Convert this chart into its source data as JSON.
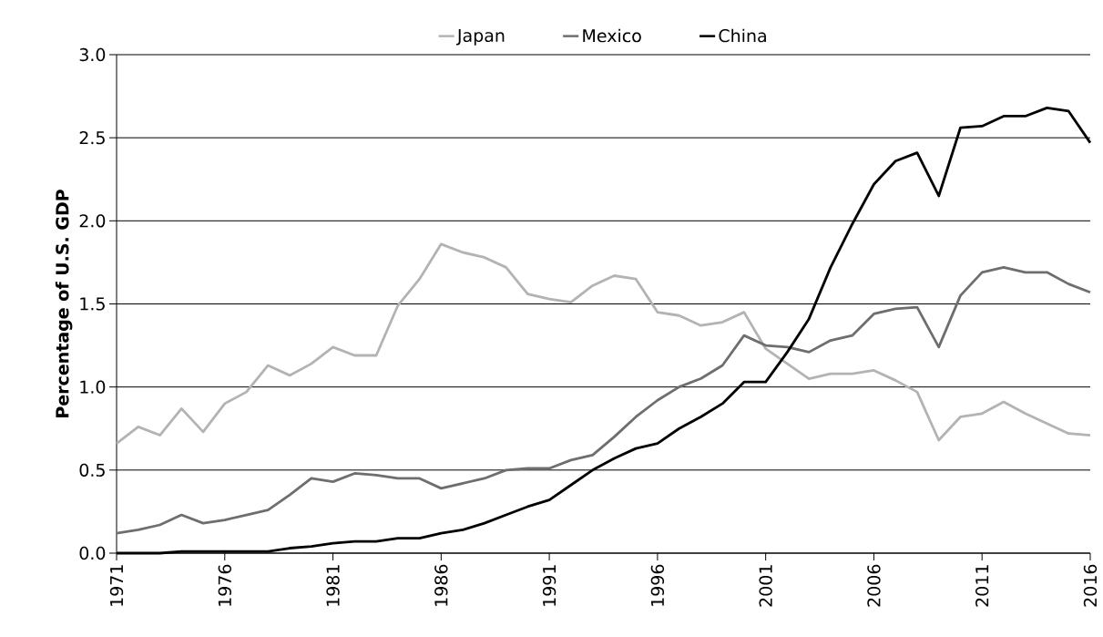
{
  "chart_data": {
    "type": "line",
    "ylabel": "Percentage of U.S. GDP",
    "x": [
      1971,
      1972,
      1973,
      1974,
      1975,
      1976,
      1977,
      1978,
      1979,
      1980,
      1981,
      1982,
      1983,
      1984,
      1985,
      1986,
      1987,
      1988,
      1989,
      1990,
      1991,
      1992,
      1993,
      1994,
      1995,
      1996,
      1997,
      1998,
      1999,
      2000,
      2001,
      2002,
      2003,
      2004,
      2005,
      2006,
      2007,
      2008,
      2009,
      2010,
      2011,
      2012,
      2013,
      2014,
      2015,
      2016
    ],
    "series": [
      {
        "name": "Japan",
        "color": "#b3b3b3",
        "values": [
          0.66,
          0.76,
          0.71,
          0.87,
          0.73,
          0.9,
          0.97,
          1.13,
          1.07,
          1.14,
          1.24,
          1.19,
          1.19,
          1.49,
          1.65,
          1.86,
          1.81,
          1.78,
          1.72,
          1.56,
          1.53,
          1.51,
          1.61,
          1.67,
          1.65,
          1.45,
          1.43,
          1.37,
          1.39,
          1.45,
          1.23,
          1.14,
          1.05,
          1.08,
          1.08,
          1.1,
          1.04,
          0.97,
          0.68,
          0.82,
          0.84,
          0.91,
          0.84,
          0.78,
          0.72,
          0.71
        ]
      },
      {
        "name": "Mexico",
        "color": "#6e6e6e",
        "values": [
          0.12,
          0.14,
          0.17,
          0.23,
          0.18,
          0.2,
          0.23,
          0.26,
          0.35,
          0.45,
          0.43,
          0.48,
          0.47,
          0.45,
          0.45,
          0.39,
          0.42,
          0.45,
          0.5,
          0.51,
          0.51,
          0.56,
          0.59,
          0.7,
          0.82,
          0.92,
          1.0,
          1.05,
          1.13,
          1.31,
          1.25,
          1.24,
          1.21,
          1.28,
          1.31,
          1.44,
          1.47,
          1.48,
          1.24,
          1.55,
          1.69,
          1.72,
          1.69,
          1.69,
          1.62,
          1.57
        ]
      },
      {
        "name": "China",
        "color": "#000000",
        "values": [
          0,
          0,
          0,
          0.01,
          0.01,
          0.01,
          0.01,
          0.01,
          0.03,
          0.04,
          0.06,
          0.07,
          0.07,
          0.09,
          0.09,
          0.12,
          0.14,
          0.18,
          0.23,
          0.28,
          0.32,
          0.41,
          0.5,
          0.57,
          0.63,
          0.66,
          0.75,
          0.82,
          0.9,
          1.03,
          1.03,
          1.21,
          1.41,
          1.72,
          1.98,
          2.22,
          2.36,
          2.41,
          2.15,
          2.56,
          2.57,
          2.63,
          2.63,
          2.68,
          2.66,
          2.47
        ]
      }
    ],
    "xlim": [
      1971,
      2016
    ],
    "ylim": [
      0,
      3
    ],
    "xticks": [
      1971,
      1976,
      1981,
      1986,
      1991,
      1996,
      2001,
      2006,
      2011,
      2016
    ],
    "yticks": [
      {
        "value": 0,
        "label": "0.0"
      },
      {
        "value": 0.5,
        "label": "0.5"
      },
      {
        "value": 1,
        "label": "1.0"
      },
      {
        "value": 1.5,
        "label": "1.5"
      },
      {
        "value": 2,
        "label": "2.0"
      },
      {
        "value": 2.5,
        "label": "2.5"
      },
      {
        "value": 3,
        "label": "3.0"
      }
    ],
    "grid": "y",
    "legend": "top",
    "marker": "none",
    "line_style": "solid"
  }
}
